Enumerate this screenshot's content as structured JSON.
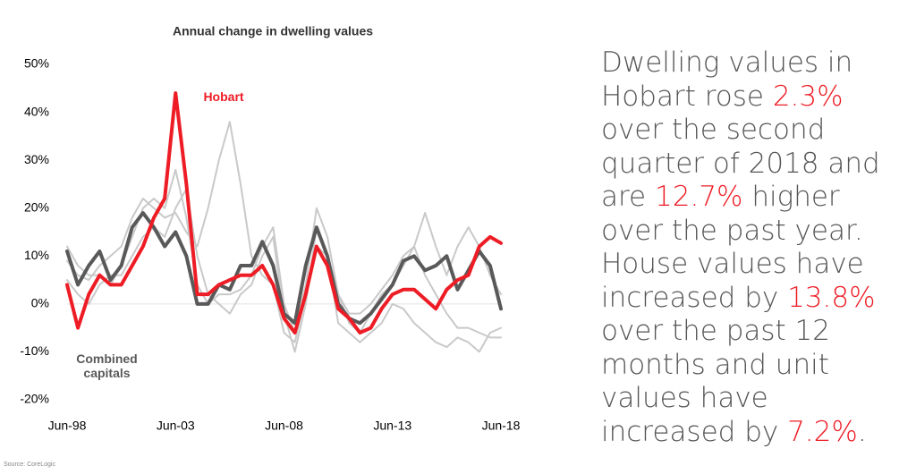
{
  "chart_data": {
    "type": "line",
    "title": "Annual change in dwelling values",
    "categories": [
      "Jun-98",
      null,
      null,
      null,
      null,
      null,
      null,
      null,
      null,
      null,
      "Jun-03",
      null,
      null,
      null,
      null,
      null,
      null,
      null,
      null,
      null,
      "Jun-08",
      null,
      null,
      null,
      null,
      null,
      null,
      null,
      null,
      null,
      "Jun-13",
      null,
      null,
      null,
      null,
      null,
      null,
      null,
      null,
      null,
      "Jun-18"
    ],
    "series": [
      {
        "color": "#c9c9c9",
        "values": [
          9,
          6,
          5,
          8,
          10,
          12,
          18,
          22,
          20,
          18,
          19,
          15,
          12,
          20,
          30,
          38,
          25,
          10,
          6,
          4,
          -6,
          -8,
          2,
          12,
          10,
          2,
          -2,
          -2,
          0,
          3,
          6,
          10,
          12,
          6,
          2,
          -2,
          -5,
          -5,
          -6,
          -7,
          -7
        ]
      },
      {
        "color": "#c9c9c9",
        "values": [
          12,
          8,
          6,
          6,
          4,
          8,
          14,
          20,
          22,
          20,
          28,
          18,
          4,
          0,
          2,
          2,
          3,
          6,
          12,
          16,
          0,
          -6,
          4,
          20,
          14,
          2,
          -4,
          -6,
          -2,
          2,
          4,
          8,
          12,
          19,
          12,
          6,
          12,
          16,
          12,
          6,
          2
        ]
      },
      {
        "color": "#c9c9c9",
        "values": [
          5,
          2,
          0,
          4,
          6,
          6,
          10,
          14,
          16,
          14,
          20,
          24,
          10,
          2,
          0,
          -2,
          2,
          4,
          10,
          14,
          -2,
          -10,
          0,
          16,
          10,
          -4,
          -6,
          -8,
          -6,
          -4,
          0,
          -1,
          -4,
          -6,
          -8,
          -9,
          -7,
          -8,
          -10,
          -6,
          -5
        ]
      },
      {
        "name": "Combined capitals",
        "color": "#595959",
        "values": [
          11,
          4,
          8,
          11,
          5,
          8,
          16,
          19,
          16,
          12,
          15,
          10,
          0,
          0,
          4,
          3,
          8,
          8,
          13,
          8,
          -2,
          -4,
          8,
          16,
          10,
          0,
          -3,
          -4,
          -2,
          1,
          4,
          9,
          10,
          7,
          8,
          10,
          3,
          7,
          11,
          8,
          -1
        ]
      },
      {
        "name": "Hobart",
        "color": "#ee1c25",
        "values": [
          4,
          -5,
          2,
          6,
          4,
          4,
          8,
          12,
          18,
          22,
          44,
          25,
          2,
          2,
          4,
          5,
          6,
          6,
          8,
          4,
          -3,
          -6,
          2,
          12,
          8,
          -1,
          -3,
          -6,
          -5,
          -1,
          2,
          3,
          3,
          1,
          -1,
          3,
          5,
          6,
          12,
          14,
          12.7
        ]
      }
    ],
    "ylim": [
      -20,
      50
    ],
    "yticks": [
      {
        "value": -20,
        "label": "-20%"
      },
      {
        "value": -10,
        "label": "-10%"
      },
      {
        "value": 0,
        "label": "0%"
      },
      {
        "value": 10,
        "label": "10%"
      },
      {
        "value": 20,
        "label": "20%"
      },
      {
        "value": 30,
        "label": "30%"
      },
      {
        "value": 40,
        "label": "40%"
      },
      {
        "value": 50,
        "label": "50%"
      }
    ],
    "source": "Source: CoreLogic"
  },
  "commentary": [
    {
      "text": "Dwelling values in Hobart rose "
    },
    {
      "text": "2.3%",
      "color": "#ee1c25"
    },
    {
      "text": " over the second quarter of 2018 and are "
    },
    {
      "text": "12.7%",
      "color": "#ee1c25"
    },
    {
      "text": " higher over the past year. House values have increased by "
    },
    {
      "text": "13.8%",
      "color": "#ee1c25"
    },
    {
      "text": " over the past 12 months and unit values have increased by "
    },
    {
      "text": "7.2%",
      "color": "#ee1c25"
    },
    {
      "text": "."
    }
  ]
}
